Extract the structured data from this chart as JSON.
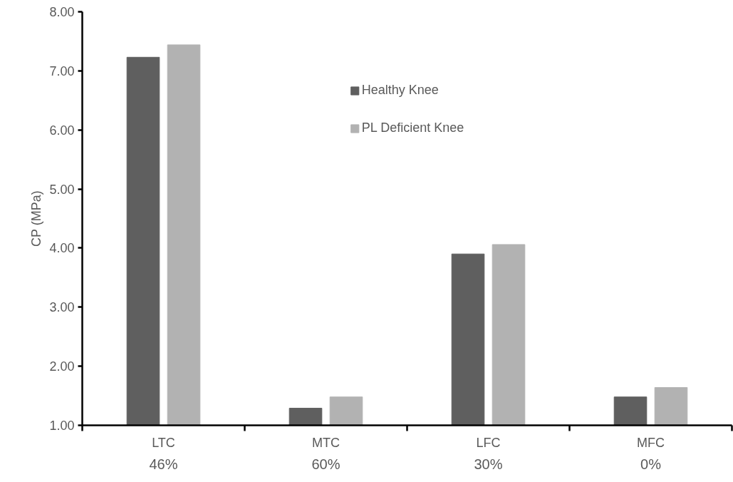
{
  "chart_data": {
    "type": "bar",
    "ylabel": "CP (MPa)",
    "categories": [
      "LTC",
      "MTC",
      "LFC",
      "MFC"
    ],
    "series": [
      {
        "name": "Healthy Knee",
        "color": "#5f5f5f",
        "values": [
          7.23,
          1.29,
          3.9,
          1.48
        ]
      },
      {
        "name": "PL Deficient Knee",
        "color": "#b2b2b2",
        "values": [
          7.44,
          1.48,
          4.06,
          1.64
        ]
      }
    ],
    "ylim": [
      1,
      8
    ],
    "yticks": [
      {
        "value": 1,
        "label": "1.00"
      },
      {
        "value": 2,
        "label": "2.00"
      },
      {
        "value": 3,
        "label": "3.00"
      },
      {
        "value": 4,
        "label": "4.00"
      },
      {
        "value": 5,
        "label": "5.00"
      },
      {
        "value": 6,
        "label": "6.00"
      },
      {
        "value": 7,
        "label": "7.00"
      },
      {
        "value": 8,
        "label": "8.00"
      }
    ],
    "annotations": [
      "46%",
      "60%",
      "30%",
      "0%"
    ],
    "grid": false,
    "legend": "top"
  }
}
